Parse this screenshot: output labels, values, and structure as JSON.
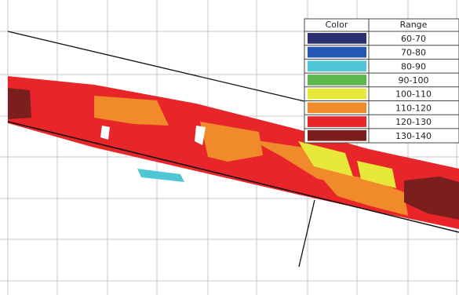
{
  "legend": {
    "headers": [
      "Color",
      "Range"
    ],
    "rows": [
      {
        "color": "#2b3170",
        "range": "60-70"
      },
      {
        "color": "#2457b5",
        "range": "70-80"
      },
      {
        "color": "#4ec6d6",
        "range": "80-90"
      },
      {
        "color": "#5cb84a",
        "range": "90-100"
      },
      {
        "color": "#e8e83a",
        "range": "100-110"
      },
      {
        "color": "#f08a2a",
        "range": "110-120"
      },
      {
        "color": "#e8262a",
        "range": "120-130"
      },
      {
        "color": "#7a1e1e",
        "range": "130-140"
      }
    ]
  }
}
